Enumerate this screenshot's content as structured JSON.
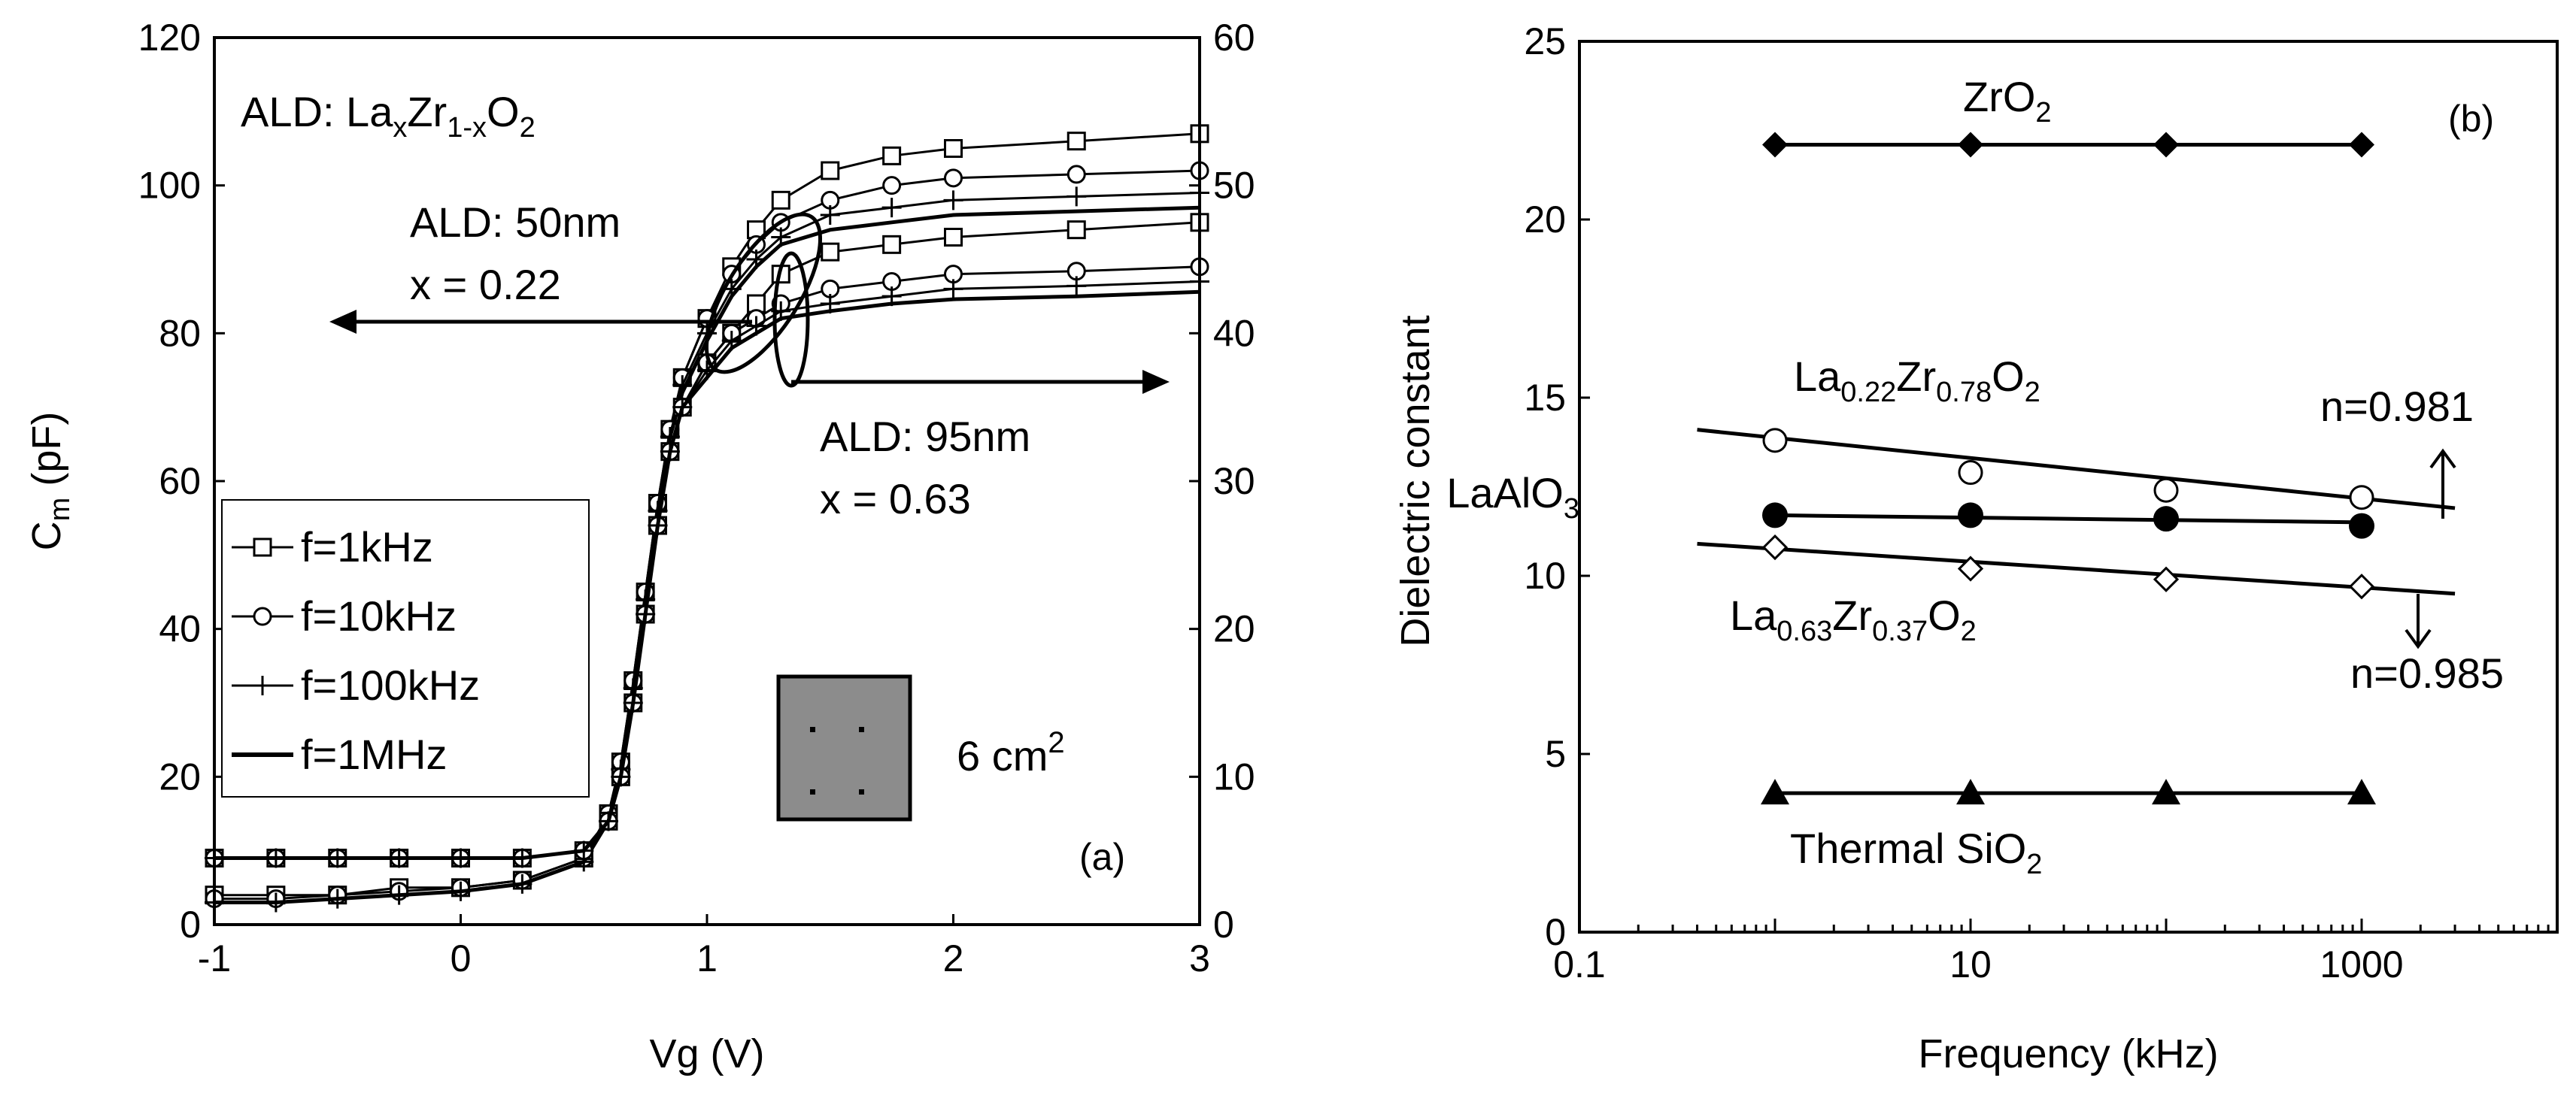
{
  "chart_data": [
    {
      "panel": "(a)",
      "type": "line",
      "title": "ALD: LaxZr1-xO2",
      "title_parts": {
        "base": "ALD: La",
        "sub1": "x",
        "mid": "Zr",
        "sub2": "1-x",
        "mid2": "O",
        "sub3": "2"
      },
      "xlabel": "Vg (V)",
      "ylabel": "Cm (pF)",
      "ylabel_parts": {
        "base": "C",
        "sub": "m",
        "rest": " (pF)"
      },
      "xlim": [
        -1,
        3
      ],
      "ylim": [
        0,
        120
      ],
      "ylim_right": [
        0,
        60
      ],
      "xticks": [
        "-1",
        "0",
        "1",
        "2",
        "3"
      ],
      "yticks": [
        "0",
        "20",
        "40",
        "60",
        "80",
        "100",
        "120"
      ],
      "yticks_right": [
        "0",
        "10",
        "20",
        "30",
        "40",
        "50",
        "60"
      ],
      "legend": [
        "f=1kHz",
        "f=10kHz",
        "f=100kHz",
        "f=1MHz"
      ],
      "annotations": {
        "film50_line1": "ALD: 50nm",
        "film50_line2": "x = 0.22",
        "film95_line1": "ALD: 95nm",
        "film95_line2": "x = 0.63",
        "area_label": "6 cm",
        "area_sup": "2",
        "panel_label": "(a)"
      },
      "x": [
        -1.0,
        -0.75,
        -0.5,
        -0.25,
        0.0,
        0.25,
        0.5,
        0.6,
        0.65,
        0.7,
        0.75,
        0.8,
        0.85,
        0.9,
        1.0,
        1.1,
        1.2,
        1.3,
        1.5,
        1.75,
        2.0,
        2.5,
        3.0
      ],
      "series": [
        {
          "name": "50nm f=1kHz",
          "axis": "left",
          "marker": "square",
          "values": [
            4,
            4,
            4,
            5,
            5,
            6,
            9,
            15,
            22,
            33,
            45,
            57,
            67,
            74,
            82,
            89,
            94,
            98,
            102,
            104,
            105,
            106,
            107
          ]
        },
        {
          "name": "50nm f=10kHz",
          "axis": "left",
          "marker": "circle",
          "values": [
            3.5,
            3.5,
            4,
            4.5,
            5,
            6,
            9,
            15,
            22,
            33,
            45,
            57,
            67,
            74,
            82,
            88,
            92,
            95,
            98,
            100,
            101,
            101.5,
            102
          ]
        },
        {
          "name": "50nm f=100kHz",
          "axis": "left",
          "marker": "plus",
          "values": [
            3,
            3,
            3.5,
            4,
            4.5,
            5.5,
            8.5,
            14,
            21,
            32,
            44,
            56,
            66,
            73,
            80,
            86,
            90,
            93,
            96,
            97,
            98,
            98.5,
            99
          ]
        },
        {
          "name": "50nm f=1MHz",
          "axis": "left",
          "marker": "none",
          "values": [
            3,
            3,
            3.5,
            4,
            4.5,
            5.5,
            8.5,
            14,
            21,
            32,
            44,
            56,
            66,
            72,
            79,
            85,
            89,
            92,
            94,
            95,
            96,
            96.5,
            97
          ]
        },
        {
          "name": "95nm f=1kHz",
          "axis": "right",
          "marker": "square",
          "values": [
            4.5,
            4.5,
            4.5,
            4.5,
            4.5,
            4.5,
            5,
            7,
            10,
            15,
            21,
            27,
            32,
            35,
            38,
            40,
            42,
            44,
            45.5,
            46,
            46.5,
            47,
            47.5
          ]
        },
        {
          "name": "95nm f=10kHz",
          "axis": "right",
          "marker": "circle",
          "values": [
            4.5,
            4.5,
            4.5,
            4.5,
            4.5,
            4.5,
            5,
            7,
            10,
            15,
            21,
            27,
            32,
            35,
            38,
            40,
            41,
            42,
            43,
            43.5,
            44,
            44.2,
            44.5
          ]
        },
        {
          "name": "95nm f=100kHz",
          "axis": "right",
          "marker": "plus",
          "values": [
            4.5,
            4.5,
            4.5,
            4.5,
            4.5,
            4.5,
            5,
            7,
            10,
            15,
            21,
            27,
            32,
            35,
            37.5,
            39.5,
            40.5,
            41.5,
            42,
            42.5,
            43,
            43.2,
            43.5
          ]
        },
        {
          "name": "95nm f=1MHz",
          "axis": "right",
          "marker": "none",
          "values": [
            4.5,
            4.5,
            4.5,
            4.5,
            4.5,
            4.5,
            5,
            7,
            10,
            15,
            21,
            27,
            32,
            35,
            37,
            39,
            40,
            41,
            41.5,
            42,
            42.3,
            42.5,
            42.8
          ]
        }
      ]
    },
    {
      "panel": "(b)",
      "type": "scatter",
      "xlabel": "Frequency (kHz)",
      "ylabel": "Dielectric constant",
      "xscale": "log",
      "xlim": [
        0.1,
        10000
      ],
      "ylim": [
        0,
        25
      ],
      "xticks": [
        "0.1",
        "10",
        "1000"
      ],
      "yticks": [
        "0",
        "5",
        "10",
        "15",
        "20",
        "25"
      ],
      "panel_label": "(b)",
      "x": [
        1,
        10,
        100,
        1000
      ],
      "series": [
        {
          "name": "ZrO2",
          "label_parts": {
            "base": "ZrO",
            "sub": "2"
          },
          "marker": "diamond-filled",
          "values": [
            22.1,
            22.1,
            22.1,
            22.1
          ],
          "fit": {
            "x": [
              1,
              1000
            ],
            "y": [
              22.1,
              22.1
            ]
          }
        },
        {
          "name": "La0.22Zr0.78O2",
          "label_parts": {
            "b1": "La",
            "s1": "0.22",
            "b2": "Zr",
            "s2": "0.78",
            "b3": "O",
            "s3": "2"
          },
          "marker": "circle-open",
          "values": [
            13.8,
            12.9,
            12.4,
            12.2
          ],
          "fit": {
            "x": [
              0.4,
              3000
            ],
            "y": [
              14.1,
              11.9
            ]
          }
        },
        {
          "name": "LaAlO3",
          "label_parts": {
            "base": "LaAlO",
            "sub": "3"
          },
          "marker": "circle-filled",
          "values": [
            11.7,
            11.7,
            11.6,
            11.4
          ],
          "fit": {
            "x": [
              1,
              1000
            ],
            "y": [
              11.7,
              11.5
            ]
          }
        },
        {
          "name": "La0.63Zr0.37O2",
          "label_parts": {
            "b1": "La",
            "s1": "0.63",
            "b2": "Zr",
            "s2": "0.37",
            "b3": "O",
            "s3": "2"
          },
          "marker": "diamond-open",
          "values": [
            10.8,
            10.2,
            9.9,
            9.7
          ],
          "fit": {
            "x": [
              0.4,
              3000
            ],
            "y": [
              10.9,
              9.5
            ]
          }
        },
        {
          "name": "Thermal SiO2",
          "label_parts": {
            "base": "Thermal SiO",
            "sub": "2"
          },
          "marker": "triangle-filled",
          "values": [
            3.9,
            3.9,
            3.9,
            3.9
          ],
          "fit": {
            "x": [
              1,
              1000
            ],
            "y": [
              3.9,
              3.9
            ]
          }
        }
      ],
      "annotations": {
        "n_upper": "n=0.981",
        "n_lower": "n=0.985"
      }
    }
  ]
}
